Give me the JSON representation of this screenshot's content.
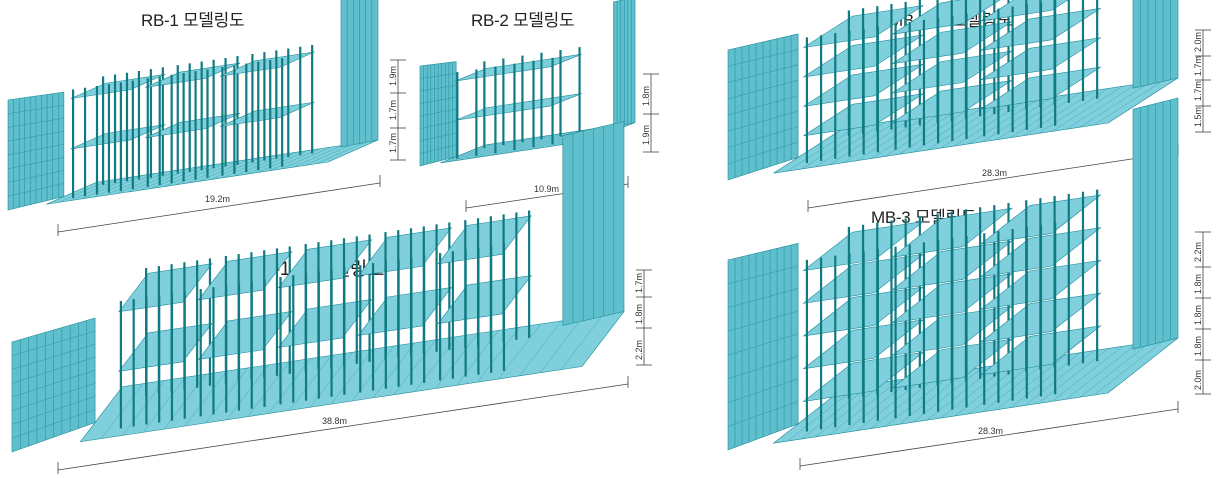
{
  "panels": [
    {
      "id": "rb1",
      "title": "RB-1 모델링도",
      "length_label": "19.2m",
      "height_labels": [
        "1.9m",
        "1.7m",
        "1.7m"
      ]
    },
    {
      "id": "rb2",
      "title": "RB-2 모델링도",
      "length_label": "10.9m",
      "height_labels": [
        "1.8m",
        "1.9m"
      ]
    },
    {
      "id": "mb24",
      "title": "MB-2, 4 모델링도",
      "length_label": "28.3m",
      "height_labels": [
        "2.0m",
        "1.7m",
        "1.7m",
        "1.5m"
      ]
    },
    {
      "id": "mb15",
      "title": "MB-1, 5 모델링도",
      "length_label": "38.8m",
      "height_labels": [
        "1.7m",
        "1.8m",
        "2.2m"
      ]
    },
    {
      "id": "mb3",
      "title": "MB-3 모델링도",
      "length_label": "28.3m",
      "height_labels": [
        "2.2m",
        "1.8m",
        "1.8m",
        "1.8m",
        "2.0m"
      ]
    }
  ],
  "colors": {
    "wall": "#5fbfcc",
    "wall_grid": "#1f8c9a",
    "slab": "#7fd0dc",
    "column": "#0f7a82",
    "dimension": "#444444"
  }
}
